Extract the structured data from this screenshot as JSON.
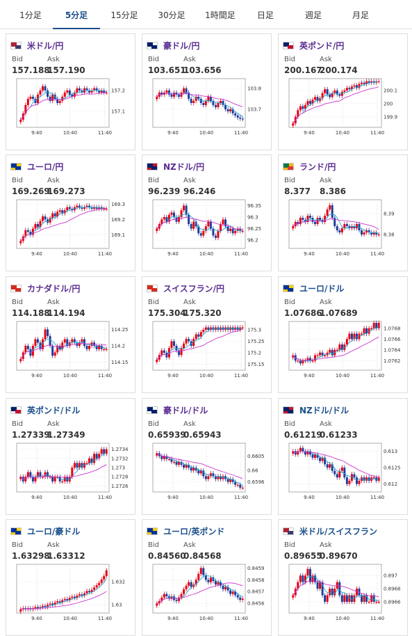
{
  "tabs": [
    {
      "label": "1分足",
      "active": false
    },
    {
      "label": "5分足",
      "active": true
    },
    {
      "label": "15分足",
      "active": false
    },
    {
      "label": "30分足",
      "active": false
    },
    {
      "label": "1時間足",
      "active": false
    },
    {
      "label": "日足",
      "active": false
    },
    {
      "label": "週足",
      "active": false
    },
    {
      "label": "月足",
      "active": false
    }
  ],
  "labels": {
    "bid": "Bid",
    "ask": "Ask"
  },
  "colors": {
    "up": "#e60012",
    "down": "#1f3d99",
    "ma_short": "#1ea7d6",
    "ma_long": "#cc33cc",
    "pair_text": "#5a2d91",
    "pair_link": "#1a4f8a"
  },
  "chart_data": [
    {
      "type": "line",
      "pair": "米ドル/円",
      "flag": "us",
      "bid": "157.188",
      "ask": "157.190",
      "x_ticks": [
        "9:40",
        "10:40",
        "11:40"
      ],
      "y_ticks": [
        "157.2",
        "157.1"
      ],
      "ylim": [
        157.03,
        157.25
      ],
      "candles": [
        157.06,
        157.09,
        157.13,
        157.16,
        157.17,
        157.16,
        157.14,
        157.18,
        157.2,
        157.22,
        157.2,
        157.17,
        157.15,
        157.18,
        157.16,
        157.14,
        157.15,
        157.17,
        157.19,
        157.2,
        157.18,
        157.17,
        157.19,
        157.21,
        157.2,
        157.19,
        157.21,
        157.2,
        157.19,
        157.2,
        157.21,
        157.2,
        157.19,
        157.2,
        157.19,
        157.19
      ]
    },
    {
      "type": "line",
      "pair": "豪ドル/円",
      "flag": "au",
      "bid": "103.651",
      "ask": "103.656",
      "x_ticks": [
        "9:40",
        "10:40",
        "11:40"
      ],
      "y_ticks": [
        "103.8",
        "103.7"
      ],
      "ylim": [
        103.62,
        103.84
      ],
      "candles": [
        103.76,
        103.78,
        103.77,
        103.78,
        103.79,
        103.77,
        103.76,
        103.78,
        103.77,
        103.76,
        103.78,
        103.8,
        103.78,
        103.75,
        103.73,
        103.74,
        103.76,
        103.75,
        103.73,
        103.72,
        103.74,
        103.76,
        103.74,
        103.72,
        103.71,
        103.73,
        103.74,
        103.72,
        103.7,
        103.69,
        103.7,
        103.68,
        103.67,
        103.66,
        103.655,
        103.653
      ]
    },
    {
      "type": "line",
      "pair": "英ポンド/円",
      "flag": "uk",
      "bid": "200.167",
      "ask": "200.174",
      "x_ticks": [
        "9:40",
        "10:40",
        "11:40"
      ],
      "y_ticks": [
        "200.1",
        "200",
        "199.9"
      ],
      "ylim": [
        199.83,
        200.18
      ],
      "candles": [
        199.85,
        199.9,
        199.95,
        199.98,
        199.96,
        199.99,
        200.02,
        200.0,
        200.03,
        200.05,
        200.02,
        200.04,
        200.08,
        200.11,
        200.07,
        200.05,
        200.08,
        200.1,
        200.07,
        200.06,
        200.09,
        200.1,
        200.12,
        200.11,
        200.13,
        200.14,
        200.12,
        200.15,
        200.16,
        200.15,
        200.17,
        200.16,
        200.17,
        200.16,
        200.17,
        200.17
      ]
    },
    {
      "type": "line",
      "pair": "ユーロ/円",
      "flag": "eu",
      "bid": "169.269",
      "ask": "169.273",
      "x_ticks": [
        "9:40",
        "10:40",
        "11:40"
      ],
      "y_ticks": [
        "169.3",
        "169.2",
        "169.1"
      ],
      "ylim": [
        169.02,
        169.32
      ],
      "candles": [
        169.06,
        169.09,
        169.13,
        169.12,
        169.1,
        169.14,
        169.17,
        169.15,
        169.19,
        169.22,
        169.2,
        169.18,
        169.21,
        169.24,
        169.22,
        169.25,
        169.26,
        169.24,
        169.26,
        169.28,
        169.27,
        169.26,
        169.28,
        169.29,
        169.28,
        169.27,
        169.28,
        169.29,
        169.28,
        169.27,
        169.28,
        169.27,
        169.28,
        169.27,
        169.27,
        169.27
      ]
    },
    {
      "type": "line",
      "pair": "NZドル/円",
      "flag": "nz",
      "bid": "96.239",
      "ask": "96.246",
      "x_ticks": [
        "9:40",
        "10:40",
        "11:40"
      ],
      "y_ticks": [
        "96.35",
        "96.3",
        "96.25",
        "96.2"
      ],
      "ylim": [
        96.17,
        96.37
      ],
      "candles": [
        96.25,
        96.27,
        96.29,
        96.3,
        96.28,
        96.31,
        96.32,
        96.3,
        96.28,
        96.3,
        96.33,
        96.35,
        96.31,
        96.27,
        96.25,
        96.28,
        96.26,
        96.23,
        96.22,
        96.24,
        96.26,
        96.28,
        96.25,
        96.22,
        96.21,
        96.24,
        96.27,
        96.29,
        96.26,
        96.24,
        96.25,
        96.23,
        96.24,
        96.25,
        96.24,
        96.24
      ]
    },
    {
      "type": "line",
      "pair": "ランド/円",
      "flag": "za",
      "bid": "8.377",
      "ask": "8.386",
      "x_ticks": [
        "9:40",
        "10:40",
        "11:40"
      ],
      "y_ticks": [
        "8.39",
        "8.38"
      ],
      "ylim": [
        8.374,
        8.396
      ],
      "candles": [
        8.384,
        8.386,
        8.385,
        8.388,
        8.387,
        8.386,
        8.389,
        8.388,
        8.386,
        8.385,
        8.388,
        8.387,
        8.386,
        8.389,
        8.392,
        8.394,
        8.388,
        8.384,
        8.382,
        8.381,
        8.383,
        8.385,
        8.384,
        8.383,
        8.384,
        8.383,
        8.385,
        8.382,
        8.38,
        8.381,
        8.382,
        8.381,
        8.38,
        8.381,
        8.38,
        8.38
      ]
    },
    {
      "type": "line",
      "pair": "カナダドル/円",
      "flag": "ca",
      "bid": "114.188",
      "ask": "114.194",
      "x_ticks": [
        "9:40",
        "10:40",
        "11:40"
      ],
      "y_ticks": [
        "114.25",
        "114.2",
        "114.15"
      ],
      "ylim": [
        114.13,
        114.27
      ],
      "candles": [
        114.16,
        114.18,
        114.2,
        114.19,
        114.17,
        114.2,
        114.22,
        114.21,
        114.19,
        114.22,
        114.25,
        114.23,
        114.2,
        114.17,
        114.18,
        114.2,
        114.19,
        114.21,
        114.22,
        114.2,
        114.21,
        114.22,
        114.21,
        114.2,
        114.21,
        114.22,
        114.2,
        114.19,
        114.2,
        114.21,
        114.2,
        114.19,
        114.2,
        114.19,
        114.19,
        114.19
      ]
    },
    {
      "type": "line",
      "pair": "スイスフラン/円",
      "flag": "ch",
      "bid": "175.304",
      "ask": "175.320",
      "x_ticks": [
        "9:40",
        "10:40",
        "11:40"
      ],
      "y_ticks": [
        "175.3",
        "175.25",
        "175.2",
        "175.15"
      ],
      "ylim": [
        175.13,
        175.33
      ],
      "candles": [
        175.17,
        175.19,
        175.21,
        175.2,
        175.18,
        175.22,
        175.25,
        175.23,
        175.21,
        175.19,
        175.22,
        175.24,
        175.26,
        175.25,
        175.23,
        175.26,
        175.28,
        175.27,
        175.29,
        175.3,
        175.31,
        175.3,
        175.31,
        175.3,
        175.31,
        175.3,
        175.31,
        175.3,
        175.31,
        175.3,
        175.31,
        175.3,
        175.31,
        175.3,
        175.31,
        175.31
      ]
    },
    {
      "type": "line",
      "pair": "ユーロ/ドル",
      "flag": "eu",
      "bid": "1.07686",
      "ask": "1.07689",
      "x_ticks": [
        "9:40",
        "10:40",
        "11:40"
      ],
      "y_ticks": [
        "1.0768",
        "1.0766",
        "1.0764",
        "1.0762"
      ],
      "ylim": [
        1.07605,
        1.0769
      ],
      "candles": [
        1.0763,
        1.0762,
        1.0762,
        1.07615,
        1.0762,
        1.0762,
        1.07625,
        1.0762,
        1.0762,
        1.0763,
        1.0763,
        1.07635,
        1.0763,
        1.0763,
        1.07635,
        1.0764,
        1.0763,
        1.0764,
        1.0764,
        1.0765,
        1.0764,
        1.0765,
        1.0766,
        1.0767,
        1.0766,
        1.0767,
        1.0766,
        1.0767,
        1.0767,
        1.0768,
        1.0767,
        1.0768,
        1.0768,
        1.0769,
        1.0768,
        1.0769
      ]
    },
    {
      "type": "line",
      "pair": "英ポンド/ドル",
      "flag": "uk",
      "bid": "1.27339",
      "ask": "1.27349",
      "x_ticks": [
        "9:40",
        "10:40",
        "11:40"
      ],
      "y_ticks": [
        "1.2734",
        "1.2732",
        "1.273",
        "1.2728",
        "1.2726"
      ],
      "ylim": [
        1.2725,
        1.2735
      ],
      "candles": [
        1.2728,
        1.2727,
        1.2728,
        1.2729,
        1.2728,
        1.2727,
        1.2728,
        1.2729,
        1.2728,
        1.2728,
        1.2729,
        1.2728,
        1.2728,
        1.2727,
        1.2728,
        1.2728,
        1.2727,
        1.2727,
        1.2728,
        1.2727,
        1.2728,
        1.273,
        1.2731,
        1.273,
        1.2731,
        1.273,
        1.2731,
        1.2731,
        1.2732,
        1.2731,
        1.2733,
        1.2732,
        1.2733,
        1.2734,
        1.2733,
        1.2734
      ]
    },
    {
      "type": "line",
      "pair": "豪ドル/ドル",
      "flag": "au",
      "bid": "0.65939",
      "ask": "0.65943",
      "x_ticks": [
        "9:40",
        "10:40",
        "11:40"
      ],
      "y_ticks": [
        "0.6605",
        "0.66",
        "0.6596"
      ],
      "ylim": [
        0.6593,
        0.6609
      ],
      "candles": [
        0.6606,
        0.6605,
        0.6604,
        0.6605,
        0.6604,
        0.6604,
        0.6603,
        0.6603,
        0.6602,
        0.6603,
        0.6602,
        0.6601,
        0.6602,
        0.6601,
        0.66,
        0.6601,
        0.66,
        0.6599,
        0.66,
        0.6598,
        0.6597,
        0.6598,
        0.6599,
        0.6598,
        0.6597,
        0.6598,
        0.6597,
        0.6598,
        0.6597,
        0.6596,
        0.6597,
        0.6596,
        0.6595,
        0.6595,
        0.6594,
        0.6594
      ]
    },
    {
      "type": "line",
      "pair": "NZドル/ドル",
      "flag": "nz",
      "bid": "0.61219",
      "ask": "0.61233",
      "x_ticks": [
        "9:40",
        "10:40",
        "11:40"
      ],
      "y_ticks": [
        "0.613",
        "0.6125",
        "0.612"
      ],
      "ylim": [
        0.6118,
        0.6132
      ],
      "candles": [
        0.613,
        0.6129,
        0.613,
        0.6131,
        0.613,
        0.6129,
        0.613,
        0.6129,
        0.6128,
        0.6129,
        0.6128,
        0.6127,
        0.6128,
        0.6126,
        0.6125,
        0.6126,
        0.6124,
        0.6123,
        0.6122,
        0.6124,
        0.6125,
        0.6122,
        0.612,
        0.6121,
        0.6123,
        0.6122,
        0.612,
        0.6121,
        0.6122,
        0.6121,
        0.6122,
        0.6121,
        0.6122,
        0.6122,
        0.6121,
        0.6122
      ]
    },
    {
      "type": "line",
      "pair": "ユーロ/豪ドル",
      "flag": "eu",
      "bid": "1.63298",
      "ask": "1.63312",
      "x_ticks": [
        "9:40",
        "10:40",
        "11:40"
      ],
      "y_ticks": [
        "1.632",
        "1.63"
      ],
      "ylim": [
        1.6294,
        1.6334
      ],
      "candles": [
        1.6296,
        1.6297,
        1.6296,
        1.6297,
        1.6296,
        1.6297,
        1.6298,
        1.6297,
        1.6298,
        1.6299,
        1.6298,
        1.63,
        1.6301,
        1.63,
        1.6302,
        1.6303,
        1.6302,
        1.6304,
        1.6305,
        1.6304,
        1.6306,
        1.6307,
        1.6306,
        1.6308,
        1.6309,
        1.6308,
        1.631,
        1.6312,
        1.6311,
        1.6313,
        1.6315,
        1.6317,
        1.6319,
        1.6322,
        1.6325,
        1.633
      ]
    },
    {
      "type": "line",
      "pair": "ユーロ/英ポンド",
      "flag": "eu",
      "bid": "0.84560",
      "ask": "0.84568",
      "x_ticks": [
        "9:40",
        "10:40",
        "11:40"
      ],
      "y_ticks": [
        "0.8459",
        "0.8458",
        "0.8457",
        "0.8456"
      ],
      "ylim": [
        0.84553,
        0.84592
      ],
      "candles": [
        0.8456,
        0.84562,
        0.84565,
        0.84568,
        0.84566,
        0.84564,
        0.84566,
        0.84563,
        0.84562,
        0.84565,
        0.84568,
        0.84572,
        0.84575,
        0.84578,
        0.84574,
        0.84576,
        0.8458,
        0.84585,
        0.8459,
        0.84584,
        0.8458,
        0.84578,
        0.84582,
        0.84579,
        0.84576,
        0.84578,
        0.84575,
        0.84572,
        0.84574,
        0.84571,
        0.84568,
        0.8457,
        0.84567,
        0.84565,
        0.84563,
        0.84564
      ]
    },
    {
      "type": "line",
      "pair": "米ドル/スイスフラン",
      "flag": "us",
      "bid": "0.89655",
      "ask": "0.89670",
      "x_ticks": [
        "9:40",
        "10:40",
        "11:40"
      ],
      "y_ticks": [
        "0.897",
        "0.8968",
        "0.8966"
      ],
      "ylim": [
        0.89645,
        0.89715
      ],
      "candles": [
        0.8967,
        0.8968,
        0.8969,
        0.897,
        0.8969,
        0.897,
        0.8971,
        0.8969,
        0.897,
        0.8969,
        0.8968,
        0.8969,
        0.8967,
        0.8966,
        0.8967,
        0.8968,
        0.8967,
        0.8968,
        0.8969,
        0.8967,
        0.8966,
        0.8967,
        0.8966,
        0.8967,
        0.8966,
        0.8967,
        0.8968,
        0.8967,
        0.8966,
        0.8967,
        0.8966,
        0.8966,
        0.8967,
        0.8966,
        0.8966,
        0.8966
      ]
    }
  ]
}
